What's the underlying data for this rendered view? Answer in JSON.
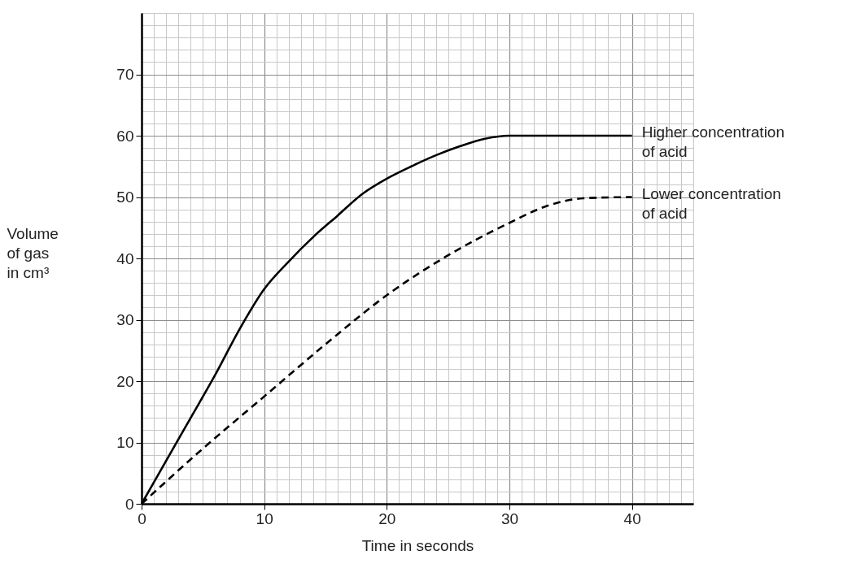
{
  "chart_data": {
    "type": "line",
    "xlabel": "Time in seconds",
    "ylabel": "Volume of gas in cm³",
    "xlim": [
      0,
      45
    ],
    "ylim": [
      0,
      80
    ],
    "xticks": [
      0,
      10,
      20,
      30,
      40
    ],
    "yticks": [
      0,
      10,
      20,
      30,
      40,
      50,
      60,
      70
    ],
    "grid": true,
    "legend": false,
    "marker": "none",
    "series": [
      {
        "name": "Higher concentration of acid",
        "color": "#000000",
        "line_style": "solid",
        "x": [
          0,
          2,
          4,
          6,
          8,
          10,
          12,
          14,
          16,
          18,
          20,
          22,
          24,
          26,
          28,
          30,
          40
        ],
        "values": [
          0,
          7,
          14,
          21,
          28.5,
          35,
          39.5,
          43.5,
          47,
          50.5,
          53,
          55,
          56.8,
          58.3,
          59.5,
          60,
          60
        ]
      },
      {
        "name": "Lower concentration of acid",
        "color": "#000000",
        "line_style": "dashed",
        "x": [
          0,
          5,
          10,
          15,
          20,
          25,
          30,
          33,
          36,
          40
        ],
        "values": [
          0,
          9,
          17.5,
          26,
          34,
          40.5,
          45.8,
          48.5,
          49.8,
          50
        ]
      }
    ]
  }
}
